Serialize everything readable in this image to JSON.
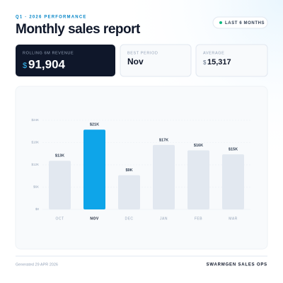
{
  "header": {
    "kicker": "Q1 · 2026 PERFORMANCE",
    "title": "Monthly sales report",
    "badge": "LAST 6 MONTHS"
  },
  "cards": [
    {
      "label": "ROLLING 6M REVENUE",
      "currency": "$",
      "value": "91,904"
    },
    {
      "label": "BEST PERIOD",
      "value": "Nov"
    },
    {
      "label": "AVERAGE",
      "currency": "$",
      "value": "15,317"
    }
  ],
  "chart_data": {
    "type": "bar",
    "categories": [
      "OCT",
      "NOV",
      "DEC",
      "JAN",
      "FEB",
      "MAR"
    ],
    "values": [
      13104,
      21480,
      9215,
      17360,
      15905,
      14840
    ],
    "value_labels": [
      "$13K",
      "$21K",
      "$9K",
      "$17K",
      "$16K",
      "$15K"
    ],
    "colors": [
      "#e2e8f0",
      "#0ea5e9",
      "#e2e8f0",
      "#e2e8f0",
      "#e2e8f0",
      "#e2e8f0"
    ],
    "ylim": [
      0,
      24000
    ],
    "yticks": [
      {
        "value": 0,
        "label": "$0"
      },
      {
        "value": 6000,
        "label": "$6K"
      },
      {
        "value": 12000,
        "label": "$12K"
      },
      {
        "value": 18000,
        "label": "$18K"
      },
      {
        "value": 24000,
        "label": "$24K"
      }
    ],
    "grid": true
  },
  "footer": {
    "generated": "Generated 29 APR 2026",
    "brand": "SWARMGEN SALES OPS"
  }
}
